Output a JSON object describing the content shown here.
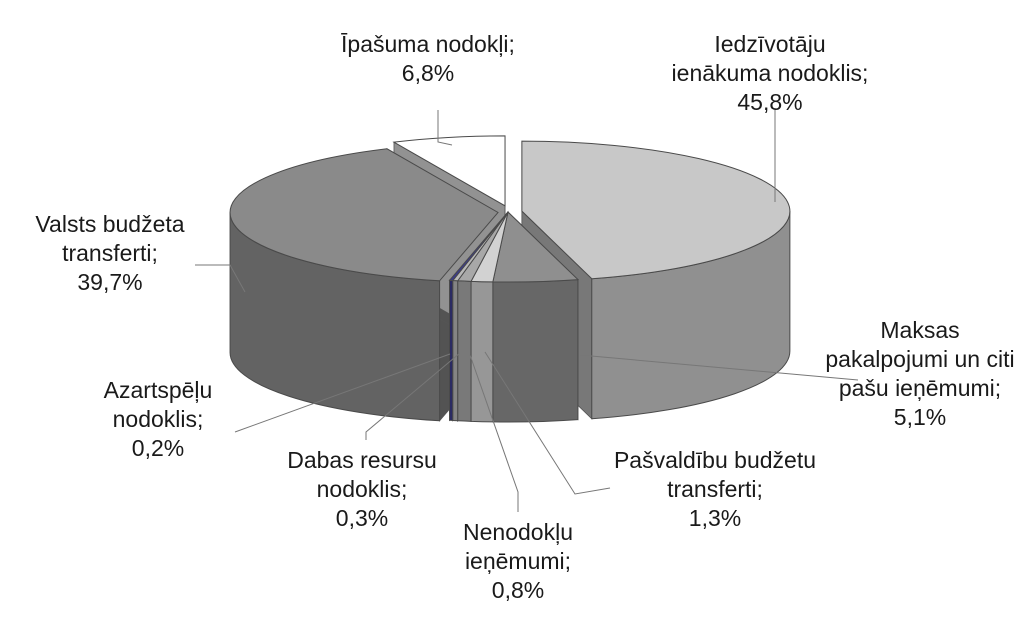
{
  "chart_data": {
    "type": "pie",
    "style": "3d-exploded",
    "legend": "none",
    "slices": [
      {
        "label_lines": [
          "Iedzīvotāju",
          "ienākuma nodoklis;",
          "45,8%"
        ],
        "value": 45.8,
        "color": "#c8c8c8"
      },
      {
        "label_lines": [
          "Maksas",
          "pakalpojumi un citi",
          "pašu ieņēmumi;",
          "5,1%"
        ],
        "value": 5.1,
        "color": "#8f8f8f"
      },
      {
        "label_lines": [
          "Pašvaldību budžetu",
          "transferti;",
          "1,3%"
        ],
        "value": 1.3,
        "color": "#d2d2d2"
      },
      {
        "label_lines": [
          "Nenodokļu",
          "ieņēmumi;",
          "0,8%"
        ],
        "value": 0.8,
        "color": "#a8a8a8"
      },
      {
        "label_lines": [
          "Dabas resursu",
          "nodoklis;",
          "0,3%"
        ],
        "value": 0.3,
        "color": "#b8b8b8"
      },
      {
        "label_lines": [
          "Azartspēļu",
          "nodoklis;",
          "0,2%"
        ],
        "value": 0.2,
        "color": "#3a3a8a"
      },
      {
        "label_lines": [
          "Valsts budžeta",
          "transferti;",
          "39,7%"
        ],
        "value": 39.7,
        "color": "#8a8a8a"
      },
      {
        "label_lines": [
          "Īpašuma nodokļi;",
          "6,8%"
        ],
        "value": 6.8,
        "color": "#ffffff"
      }
    ]
  }
}
